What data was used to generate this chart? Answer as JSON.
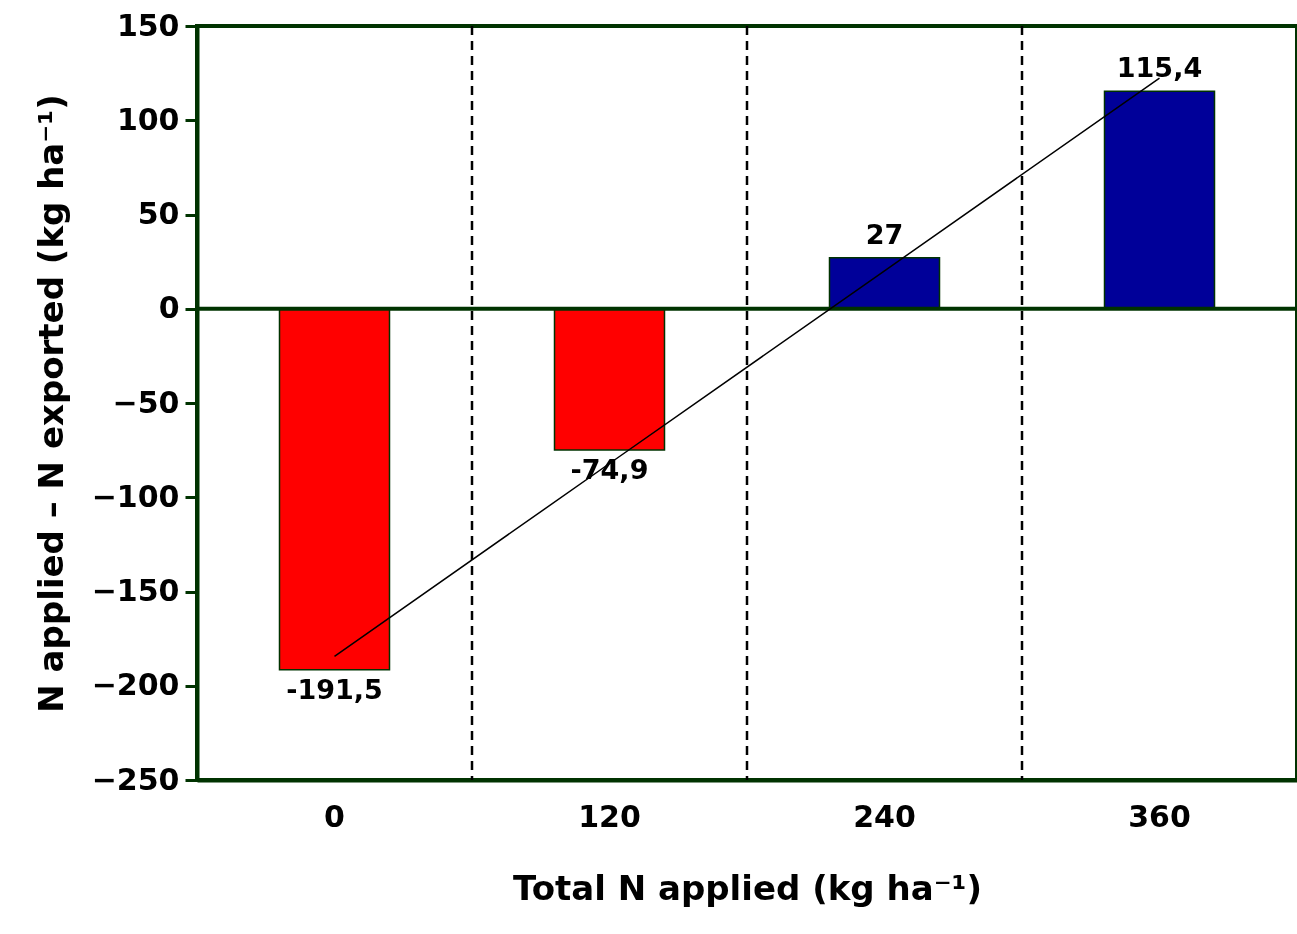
{
  "chart_data": {
    "type": "bar",
    "xlabel": "Total N applied (kg ha⁻¹)",
    "ylabel": "N applied – N exported (kg ha⁻¹)",
    "categories": [
      "0",
      "120",
      "240",
      "360"
    ],
    "values": [
      -191.5,
      -74.9,
      27,
      115.4
    ],
    "colors": [
      "#ff0000",
      "#ff0000",
      "#000099",
      "#000099"
    ],
    "value_labels": [
      "-191,5",
      "-74,9",
      "27",
      "115,4"
    ],
    "series": [
      {
        "type": "line",
        "values": [
          -184.4,
          -82.1,
          20.1,
          122.4
        ],
        "color": "#000000"
      }
    ],
    "ylim": [
      -250,
      150
    ],
    "yticks": [
      -250,
      -200,
      -150,
      -100,
      -50,
      0,
      50,
      100,
      150
    ],
    "ref_lines": [
      {
        "axis": "y",
        "value": 0,
        "color": "#003300"
      }
    ],
    "grid": "x",
    "line_style": "solid"
  }
}
